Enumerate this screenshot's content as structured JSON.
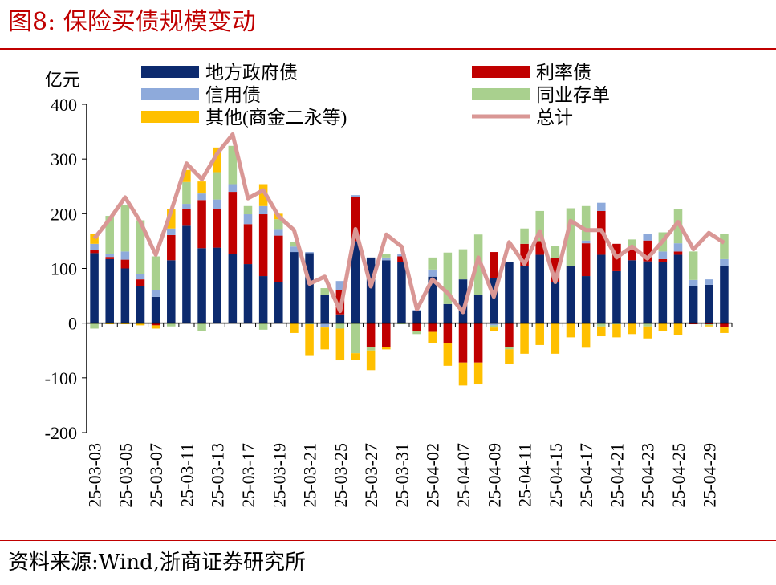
{
  "title": "图8:  保险买债规模变动",
  "source": "资料来源:Wind,浙商证券研究所",
  "chart_data": {
    "type": "bar",
    "stacked": true,
    "ylabel": "亿元",
    "ylim": [
      -200,
      400
    ],
    "yticks": [
      400,
      300,
      200,
      100,
      0,
      -100,
      -200
    ],
    "categories": [
      "25-03-03",
      "25-03-04",
      "25-03-05",
      "25-03-06",
      "25-03-07",
      "25-03-10",
      "25-03-11",
      "25-03-12",
      "25-03-13",
      "25-03-14",
      "25-03-17",
      "25-03-18",
      "25-03-19",
      "25-03-20",
      "25-03-21",
      "25-03-24",
      "25-03-25",
      "25-03-26",
      "25-03-27",
      "25-03-28",
      "25-03-31",
      "25-04-01",
      "25-04-02",
      "25-04-03",
      "25-04-07",
      "25-04-08",
      "25-04-09",
      "25-04-10",
      "25-04-11",
      "25-04-14",
      "25-04-15",
      "25-04-16",
      "25-04-17",
      "25-04-18",
      "25-04-21",
      "25-04-22",
      "25-04-23",
      "25-04-24",
      "25-04-25",
      "25-04-28",
      "25-04-29",
      "25-04-30"
    ],
    "tick_labels": [
      "25-03-03",
      "",
      "25-03-05",
      "",
      "25-03-07",
      "",
      "25-03-11",
      "",
      "25-03-13",
      "",
      "25-03-17",
      "",
      "25-03-19",
      "",
      "25-03-21",
      "",
      "25-03-25",
      "",
      "25-03-27",
      "",
      "25-03-31",
      "",
      "25-04-02",
      "",
      "25-04-07",
      "",
      "25-04-09",
      "",
      "25-04-11",
      "",
      "25-04-15",
      "",
      "25-04-17",
      "",
      "25-04-21",
      "",
      "25-04-23",
      "",
      "25-04-25",
      "",
      "25-04-29",
      ""
    ],
    "series": [
      {
        "name": "地方政府债",
        "type": "bar",
        "color": "#0c2a6e",
        "values": [
          128,
          117,
          100,
          68,
          48,
          115,
          178,
          137,
          138,
          127,
          108,
          86,
          75,
          130,
          128,
          52,
          16,
          150,
          120,
          115,
          112,
          22,
          85,
          35,
          80,
          52,
          82,
          112,
          105,
          125,
          75,
          104,
          86,
          125,
          95,
          115,
          113,
          112,
          125,
          67,
          70,
          105
        ]
      },
      {
        "name": "利率债",
        "type": "bar",
        "color": "#c00000",
        "values": [
          5,
          4,
          16,
          12,
          -4,
          46,
          30,
          88,
          70,
          113,
          73,
          113,
          85,
          0,
          0,
          0,
          45,
          80,
          -44,
          -44,
          10,
          -14,
          -16,
          -36,
          -72,
          -72,
          48,
          -44,
          40,
          25,
          44,
          0,
          60,
          80,
          50,
          20,
          38,
          5,
          6,
          -2,
          -2,
          -8
        ]
      },
      {
        "name": "信用债",
        "type": "bar",
        "color": "#8eaadb",
        "values": [
          12,
          5,
          15,
          10,
          12,
          12,
          10,
          12,
          18,
          14,
          18,
          15,
          12,
          10,
          2,
          -8,
          16,
          4,
          0,
          5,
          5,
          2,
          13,
          0,
          0,
          0,
          -4,
          0,
          0,
          0,
          0,
          0,
          5,
          15,
          0,
          4,
          12,
          14,
          15,
          12,
          10,
          12
        ]
      },
      {
        "name": "同业存单",
        "type": "bar",
        "color": "#a9d08e",
        "values": [
          -10,
          70,
          85,
          98,
          62,
          -6,
          40,
          -14,
          50,
          70,
          15,
          -12,
          18,
          8,
          -2,
          12,
          -10,
          -55,
          -6,
          6,
          -2,
          -6,
          22,
          94,
          55,
          110,
          -4,
          -4,
          28,
          55,
          22,
          106,
          63,
          -6,
          -2,
          14,
          -6,
          35,
          62,
          52,
          -2,
          46
        ]
      },
      {
        "name": "其他(商金二永等)",
        "type": "bar",
        "color": "#ffc000",
        "values": [
          18,
          -2,
          -2,
          -4,
          -6,
          35,
          22,
          22,
          45,
          0,
          0,
          40,
          10,
          -18,
          -58,
          -40,
          -58,
          -12,
          -36,
          -4,
          0,
          0,
          -20,
          -42,
          -42,
          -40,
          -6,
          -26,
          -56,
          -40,
          -56,
          -26,
          -45,
          -18,
          -24,
          -20,
          -22,
          -14,
          -22,
          0,
          -2,
          -10
        ]
      },
      {
        "name": "总计",
        "type": "line",
        "color": "#d99795",
        "values": [
          155,
          190,
          230,
          185,
          125,
          205,
          292,
          263,
          310,
          345,
          228,
          243,
          195,
          170,
          72,
          85,
          22,
          172,
          67,
          162,
          140,
          25,
          80,
          55,
          20,
          120,
          48,
          148,
          108,
          168,
          75,
          187,
          170,
          170,
          120,
          140,
          118,
          150,
          185,
          135,
          165,
          147
        ]
      }
    ]
  }
}
